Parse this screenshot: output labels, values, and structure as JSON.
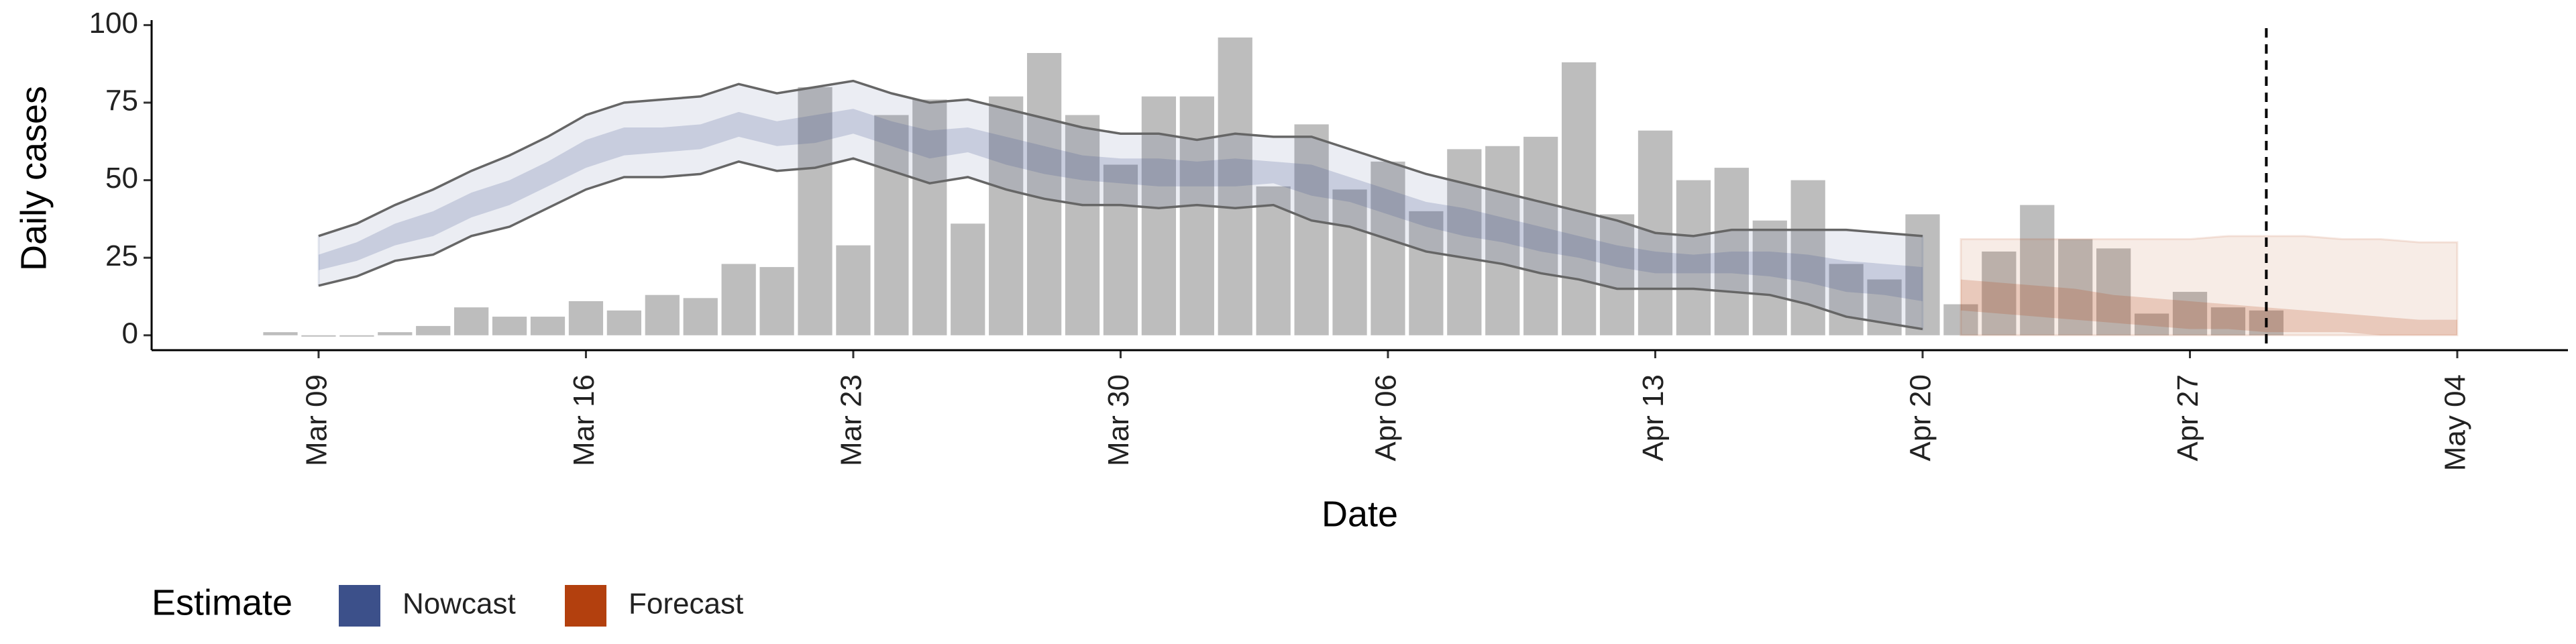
{
  "chart_data": {
    "type": "bar",
    "x_label": "Date",
    "y_label": "Daily cases",
    "categories": [
      null,
      "Mar 09",
      null,
      null,
      null,
      null,
      null,
      null,
      "Mar 16",
      null,
      null,
      null,
      null,
      null,
      null,
      "Mar 23",
      null,
      null,
      null,
      null,
      null,
      null,
      "Mar 30",
      null,
      null,
      null,
      null,
      null,
      null,
      "Apr 06",
      null,
      null,
      null,
      null,
      null,
      null,
      "Apr 13",
      null,
      null,
      null,
      null,
      null,
      null,
      "Apr 20",
      null,
      null,
      null,
      null,
      null,
      null,
      "Apr 27",
      null,
      null,
      null,
      null,
      null,
      null,
      "May 04"
    ],
    "values": [
      1,
      0,
      0,
      1,
      3,
      9,
      6,
      6,
      11,
      8,
      13,
      12,
      23,
      22,
      80,
      29,
      71,
      76,
      36,
      77,
      91,
      71,
      55,
      77,
      77,
      96,
      48,
      68,
      47,
      56,
      40,
      60,
      61,
      64,
      88,
      39,
      66,
      50,
      54,
      37,
      50,
      23,
      18,
      39,
      10,
      27,
      42,
      31,
      28,
      7,
      14,
      9,
      8,
      null,
      null,
      null,
      null,
      null
    ],
    "color": "#bdbdbd",
    "ylim": [
      -4.8,
      101.6
    ],
    "yticks": [
      0,
      25,
      50,
      75,
      100
    ],
    "legend_title": "Estimate",
    "bands": [
      {
        "name": "Nowcast",
        "color": "#3c508a",
        "outline": "#666666",
        "outer_upper": [
          null,
          32,
          36,
          42,
          47,
          53,
          58,
          64,
          71,
          75,
          76,
          77,
          81,
          78,
          80,
          82,
          78,
          75,
          76,
          73,
          70,
          67,
          65,
          65,
          63,
          65,
          64,
          64,
          60,
          56,
          52,
          49,
          46,
          43,
          40,
          37,
          33,
          32,
          34,
          34,
          34,
          34,
          33,
          32,
          null,
          null,
          null,
          null,
          null,
          null,
          null,
          null,
          null,
          null,
          null,
          null,
          null,
          null
        ],
        "outer_lower": [
          null,
          16,
          19,
          24,
          26,
          32,
          35,
          41,
          47,
          51,
          51,
          52,
          56,
          53,
          54,
          57,
          53,
          49,
          51,
          47,
          44,
          42,
          42,
          41,
          42,
          41,
          42,
          37,
          35,
          31,
          27,
          25,
          23,
          20,
          18,
          15,
          15,
          15,
          14,
          13,
          10,
          6,
          4,
          2,
          null,
          null,
          null,
          null,
          null,
          null,
          null,
          null,
          null,
          null,
          null,
          null,
          null,
          null
        ],
        "inner_upper": [
          null,
          26,
          30,
          36,
          40,
          46,
          50,
          56,
          63,
          67,
          67,
          68,
          72,
          69,
          71,
          73,
          69,
          66,
          67,
          64,
          61,
          58,
          57,
          57,
          56,
          57,
          56,
          55,
          51,
          47,
          43,
          41,
          38,
          35,
          32,
          29,
          27,
          26,
          27,
          27,
          26,
          24,
          23,
          22,
          null,
          null,
          null,
          null,
          null,
          null,
          null,
          null,
          null,
          null,
          null,
          null,
          null,
          null
        ],
        "inner_lower": [
          null,
          21,
          24,
          29,
          32,
          38,
          42,
          48,
          54,
          58,
          59,
          60,
          64,
          61,
          62,
          65,
          61,
          57,
          59,
          55,
          52,
          50,
          49,
          48,
          48,
          48,
          49,
          45,
          43,
          39,
          35,
          32,
          30,
          27,
          25,
          22,
          20,
          20,
          20,
          19,
          17,
          14,
          13,
          11,
          null,
          null,
          null,
          null,
          null,
          null,
          null,
          null,
          null,
          null,
          null,
          null,
          null,
          null
        ]
      },
      {
        "name": "Forecast",
        "color": "#b3400e",
        "outer_upper": [
          null,
          null,
          null,
          null,
          null,
          null,
          null,
          null,
          null,
          null,
          null,
          null,
          null,
          null,
          null,
          null,
          null,
          null,
          null,
          null,
          null,
          null,
          null,
          null,
          null,
          null,
          null,
          null,
          null,
          null,
          null,
          null,
          null,
          null,
          null,
          null,
          null,
          null,
          null,
          null,
          null,
          null,
          null,
          null,
          31,
          31,
          31,
          31,
          31,
          31,
          31,
          32,
          32,
          32,
          31,
          31,
          30,
          30
        ],
        "outer_lower": [
          null,
          null,
          null,
          null,
          null,
          null,
          null,
          null,
          null,
          null,
          null,
          null,
          null,
          null,
          null,
          null,
          null,
          null,
          null,
          null,
          null,
          null,
          null,
          null,
          null,
          null,
          null,
          null,
          null,
          null,
          null,
          null,
          null,
          null,
          null,
          null,
          null,
          null,
          null,
          null,
          null,
          null,
          null,
          null,
          0,
          0,
          0,
          0,
          0,
          0,
          0,
          0,
          0,
          0,
          0,
          0,
          0,
          0
        ],
        "inner_upper": [
          null,
          null,
          null,
          null,
          null,
          null,
          null,
          null,
          null,
          null,
          null,
          null,
          null,
          null,
          null,
          null,
          null,
          null,
          null,
          null,
          null,
          null,
          null,
          null,
          null,
          null,
          null,
          null,
          null,
          null,
          null,
          null,
          null,
          null,
          null,
          null,
          null,
          null,
          null,
          null,
          null,
          null,
          null,
          null,
          18,
          17,
          16,
          15,
          13,
          12,
          11,
          10,
          9,
          8,
          7,
          6,
          5,
          5
        ],
        "inner_lower": [
          null,
          null,
          null,
          null,
          null,
          null,
          null,
          null,
          null,
          null,
          null,
          null,
          null,
          null,
          null,
          null,
          null,
          null,
          null,
          null,
          null,
          null,
          null,
          null,
          null,
          null,
          null,
          null,
          null,
          null,
          null,
          null,
          null,
          null,
          null,
          null,
          null,
          null,
          null,
          null,
          null,
          null,
          null,
          null,
          8,
          7,
          6,
          5,
          4,
          3,
          2,
          2,
          1,
          1,
          1,
          0,
          0,
          0
        ]
      }
    ]
  }
}
